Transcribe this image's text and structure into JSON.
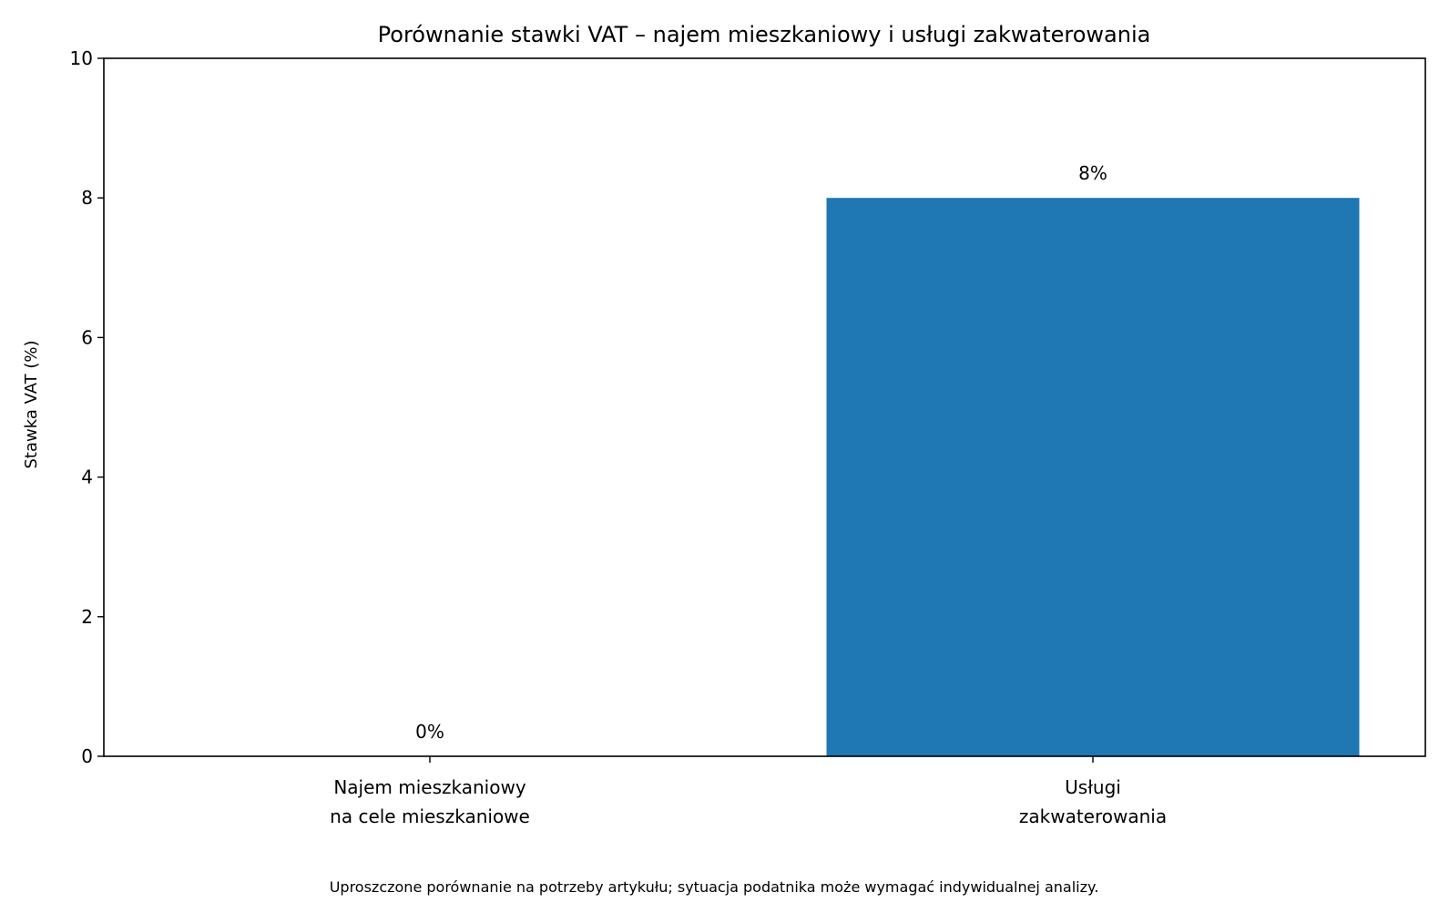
{
  "chart_data": {
    "type": "bar",
    "title": "Porównanie stawki VAT – najem mieszkaniowy i usługi zakwaterowania",
    "ylabel": "Stawka VAT (%)",
    "xlabel": "",
    "categories": [
      [
        "Najem mieszkaniowy",
        "na cele mieszkaniowe"
      ],
      [
        "Usługi",
        "zakwaterowania"
      ]
    ],
    "values": [
      0,
      8
    ],
    "value_labels": [
      "0%",
      "8%"
    ],
    "ylim": [
      0,
      10
    ],
    "yticks": [
      "0",
      "2",
      "4",
      "6",
      "8",
      "10"
    ],
    "bar_color": "#1f77b4",
    "grid": false,
    "footnote": "Uproszczone porównanie na potrzeby artykułu; sytuacja podatnika może wymagać indywidualnej analizy."
  }
}
